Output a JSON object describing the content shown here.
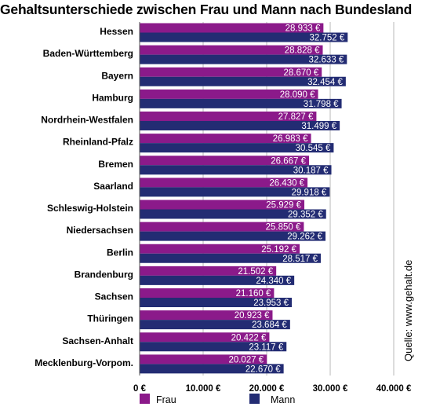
{
  "chart_data": {
    "type": "bar",
    "orientation": "horizontal",
    "title": "Gehaltsunterschiede zwischen Frau und Mann nach Bundesland",
    "categories": [
      "Hessen",
      "Baden-Württemberg",
      "Bayern",
      "Hamburg",
      "Nordrhein-Westfalen",
      "Rheinland-Pfalz",
      "Bremen",
      "Saarland",
      "Schleswig-Holstein",
      "Niedersachsen",
      "Berlin",
      "Brandenburg",
      "Sachsen",
      "Thüringen",
      "Sachsen-Anhalt",
      "Mecklenburg-Vorpom."
    ],
    "series": [
      {
        "name": "Frau",
        "color": "#8B1A8A",
        "values": [
          28933,
          28828,
          28670,
          28090,
          27827,
          26983,
          26667,
          26430,
          25929,
          25850,
          25192,
          21502,
          21160,
          20923,
          20422,
          20027
        ],
        "labels": [
          "28.933 €",
          "28.828 €",
          "28.670 €",
          "28.090 €",
          "27.827 €",
          "26.983 €",
          "26.667 €",
          "26.430 €",
          "25.929 €",
          "25.850 €",
          "25.192 €",
          "21.502 €",
          "21.160 €",
          "20.923 €",
          "20.422 €",
          "20.027 €"
        ]
      },
      {
        "name": "Mann",
        "color": "#232C73",
        "values": [
          32752,
          32633,
          32454,
          31798,
          31499,
          30545,
          30187,
          29918,
          29352,
          29262,
          28517,
          24340,
          23953,
          23684,
          23117,
          22670
        ],
        "labels": [
          "32.752 €",
          "32.633 €",
          "32.454 €",
          "31.798 €",
          "31.499 €",
          "30.545 €",
          "30.187 €",
          "29.918 €",
          "29.352 €",
          "29.262 €",
          "28.517 €",
          "24.340 €",
          "23.953 €",
          "23.684 €",
          "23.117 €",
          "22.670 €"
        ]
      }
    ],
    "xlim": [
      0,
      40000
    ],
    "xticks": [
      0,
      10000,
      20000,
      30000,
      40000
    ],
    "xtick_labels": [
      "0 €",
      "10.000 €",
      "20.000 €",
      "30.000 €",
      "40.000 €"
    ],
    "grid": true,
    "legend_position": "bottom",
    "annotation": "Quelle: www.gehalt.de"
  }
}
